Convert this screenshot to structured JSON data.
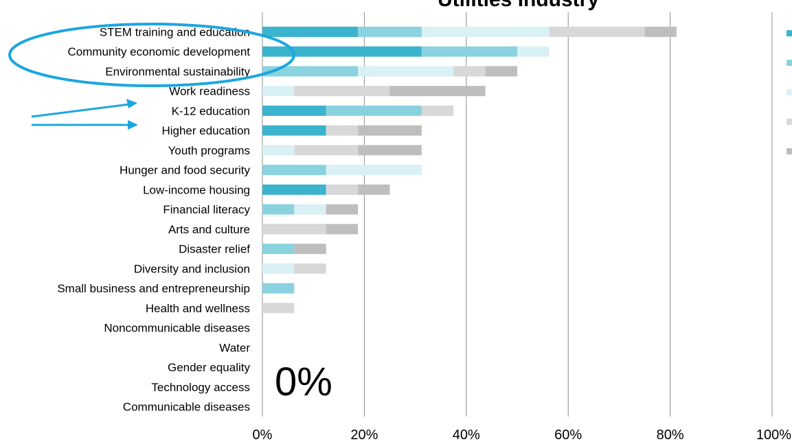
{
  "chart_data": {
    "type": "bar",
    "orientation": "horizontal",
    "stacked": true,
    "title": "Utilities Industry",
    "annotation": "0%",
    "categories": [
      "STEM training and education",
      "Community economic development",
      "Environmental sustainability",
      "Work readiness",
      "K-12 education",
      "Higher education",
      "Youth programs",
      "Hunger and food security",
      "Low-income housing",
      "Financial literacy",
      "Arts and culture",
      "Disaster relief",
      "Diversity and inclusion",
      "Small business and entrepreneurship",
      "Health and wellness",
      "Noncommunicable diseases",
      "Water",
      "Gender equality",
      "Technology access",
      "Communicable diseases"
    ],
    "series": [
      {
        "color": "#3BB3CC",
        "values": [
          18.75,
          31.25,
          0,
          0,
          12.5,
          12.5,
          0,
          0,
          12.5,
          0,
          0,
          0,
          0,
          0,
          0,
          0,
          0,
          0,
          0,
          0
        ]
      },
      {
        "color": "#8AD2DF",
        "values": [
          12.5,
          18.75,
          18.75,
          0,
          18.75,
          0,
          0,
          12.5,
          0,
          6.25,
          0,
          6.25,
          0,
          6.25,
          0,
          0,
          0,
          0,
          0,
          0
        ]
      },
      {
        "color": "#D9F0F5",
        "values": [
          25,
          6.25,
          18.75,
          6.25,
          0,
          0,
          6.25,
          18.75,
          0,
          6.25,
          0,
          0,
          6.25,
          0,
          0,
          0,
          0,
          0,
          0,
          0
        ]
      },
      {
        "color": "#D8D8D8",
        "values": [
          18.75,
          0,
          6.25,
          18.75,
          6.25,
          6.25,
          12.5,
          0,
          6.25,
          0,
          12.5,
          0,
          6.25,
          0,
          6.25,
          0,
          0,
          0,
          0,
          0
        ]
      },
      {
        "color": "#BEBEBE",
        "values": [
          6.25,
          0,
          6.25,
          18.75,
          0,
          12.5,
          12.5,
          0,
          6.25,
          6.25,
          6.25,
          6.25,
          0,
          0,
          0,
          0,
          0,
          0,
          0,
          0
        ]
      }
    ],
    "xlim": [
      0,
      100
    ],
    "xticks": [
      "0%",
      "20%",
      "40%",
      "60%",
      "80%",
      "100%"
    ],
    "grid": "vertical",
    "legend": "right (labels cropped)"
  },
  "overlay": {
    "ellipse_color": "#1BA6E0",
    "arrow_color": "#1BA6E0"
  }
}
